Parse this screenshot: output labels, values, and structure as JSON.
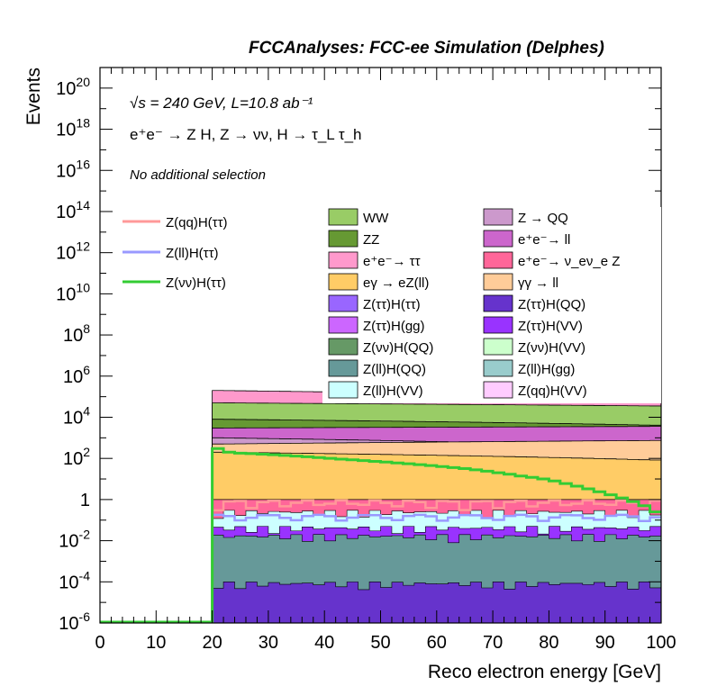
{
  "header": {
    "title": "FCCAnalyses: FCC-ee Simulation (Delphes)"
  },
  "annotations": {
    "line1": "√s = 240 GeV, L=10.8 ab⁻¹",
    "line2": "e⁺e⁻ → Z H, Z → νν, H → τ_L τ_h",
    "line3": "No additional selection"
  },
  "chart_data": {
    "type": "area",
    "xlabel": "Reco electron energy [GeV]",
    "ylabel": "Events",
    "xlim": [
      0,
      100
    ],
    "ylim": [
      1e-06,
      1e+21
    ],
    "log_y": true,
    "x_ticks": [
      "0",
      "10",
      "20",
      "30",
      "40",
      "50",
      "60",
      "70",
      "80",
      "90",
      "100"
    ],
    "y_ticks": [
      "10^-6",
      "10^-4",
      "10^-2",
      "1",
      "10^2",
      "10^4",
      "10^6",
      "10^8",
      "10^10",
      "10^12",
      "10^14",
      "10^16",
      "10^18",
      "10^20"
    ],
    "stacked_backgrounds": [
      {
        "name": "e⁺e⁻→ ττ",
        "color": "#ff99cc",
        "approx_level": 200000.0
      },
      {
        "name": "WW",
        "color": "#99cc66",
        "approx_level": 50000.0
      },
      {
        "name": "ZZ",
        "color": "#669933",
        "approx_level": 8000.0
      },
      {
        "name": "e⁺e⁻→ ll",
        "color": "#cc66cc",
        "approx_level": 3000.0
      },
      {
        "name": "Z → QQ",
        "color": "#cc99cc",
        "approx_level": 1000.0
      },
      {
        "name": "γγ → ll",
        "color": "#ffcc99",
        "approx_level": 500
      },
      {
        "name": "eγ → eZ(ll)",
        "color": "#ffcc66",
        "approx_level": 200
      },
      {
        "name": "e⁺e⁻→ ν_eν_e Z",
        "color": "#ff6699",
        "approx_level": 1
      }
    ],
    "signal_lines": [
      {
        "name": "Z(qq)H(ττ)",
        "color": "#ff9999"
      },
      {
        "name": "Z(ll)H(ττ)",
        "color": "#9999ff"
      },
      {
        "name": "Z(νν)H(ττ)",
        "color": "#33cc33",
        "x": [
          20,
          22,
          24,
          26,
          28,
          30,
          32,
          34,
          36,
          38,
          40,
          42,
          44,
          46,
          48,
          50,
          52,
          54,
          56,
          58,
          60,
          62,
          64,
          66,
          68,
          70,
          72,
          74,
          76,
          78,
          80,
          82,
          84,
          86,
          88,
          90,
          92,
          94,
          96,
          98
        ],
        "y": [
          300,
          200,
          180,
          170,
          160,
          150,
          140,
          130,
          120,
          110,
          100,
          92,
          85,
          78,
          72,
          66,
          60,
          55,
          50,
          45,
          40,
          36,
          32,
          28,
          24,
          20,
          17,
          14,
          12,
          10,
          8,
          6,
          4.5,
          3.3,
          2.4,
          1.7,
          1.2,
          0.8,
          0.5,
          0.25
        ]
      }
    ],
    "legend": [
      {
        "name": "WW",
        "color": "#99cc66"
      },
      {
        "name": "Z → QQ",
        "color": "#cc99cc"
      },
      {
        "name": "ZZ",
        "color": "#669933"
      },
      {
        "name": "e⁺e⁻→ ll",
        "color": "#cc66cc"
      },
      {
        "name": "e⁺e⁻→ ττ",
        "color": "#ff99cc"
      },
      {
        "name": "e⁺e⁻→ ν_eν_e Z",
        "color": "#ff6699"
      },
      {
        "name": "eγ → eZ(ll)",
        "color": "#ffcc66"
      },
      {
        "name": "γγ → ll",
        "color": "#ffcc99"
      },
      {
        "name": "Z(ττ)H(ττ)",
        "color": "#9966ff"
      },
      {
        "name": "Z(ττ)H(QQ)",
        "color": "#6633cc"
      },
      {
        "name": "Z(ττ)H(gg)",
        "color": "#cc66ff"
      },
      {
        "name": "Z(ττ)H(VV)",
        "color": "#9933ff"
      },
      {
        "name": "Z(νν)H(QQ)",
        "color": "#669966"
      },
      {
        "name": "Z(νν)H(VV)",
        "color": "#ccffcc"
      },
      {
        "name": "Z(ll)H(QQ)",
        "color": "#669999"
      },
      {
        "name": "Z(ll)H(gg)",
        "color": "#99cccc"
      },
      {
        "name": "Z(ll)H(VV)",
        "color": "#ccffff"
      },
      {
        "name": "Z(qq)H(VV)",
        "color": "#ffccff"
      }
    ]
  }
}
